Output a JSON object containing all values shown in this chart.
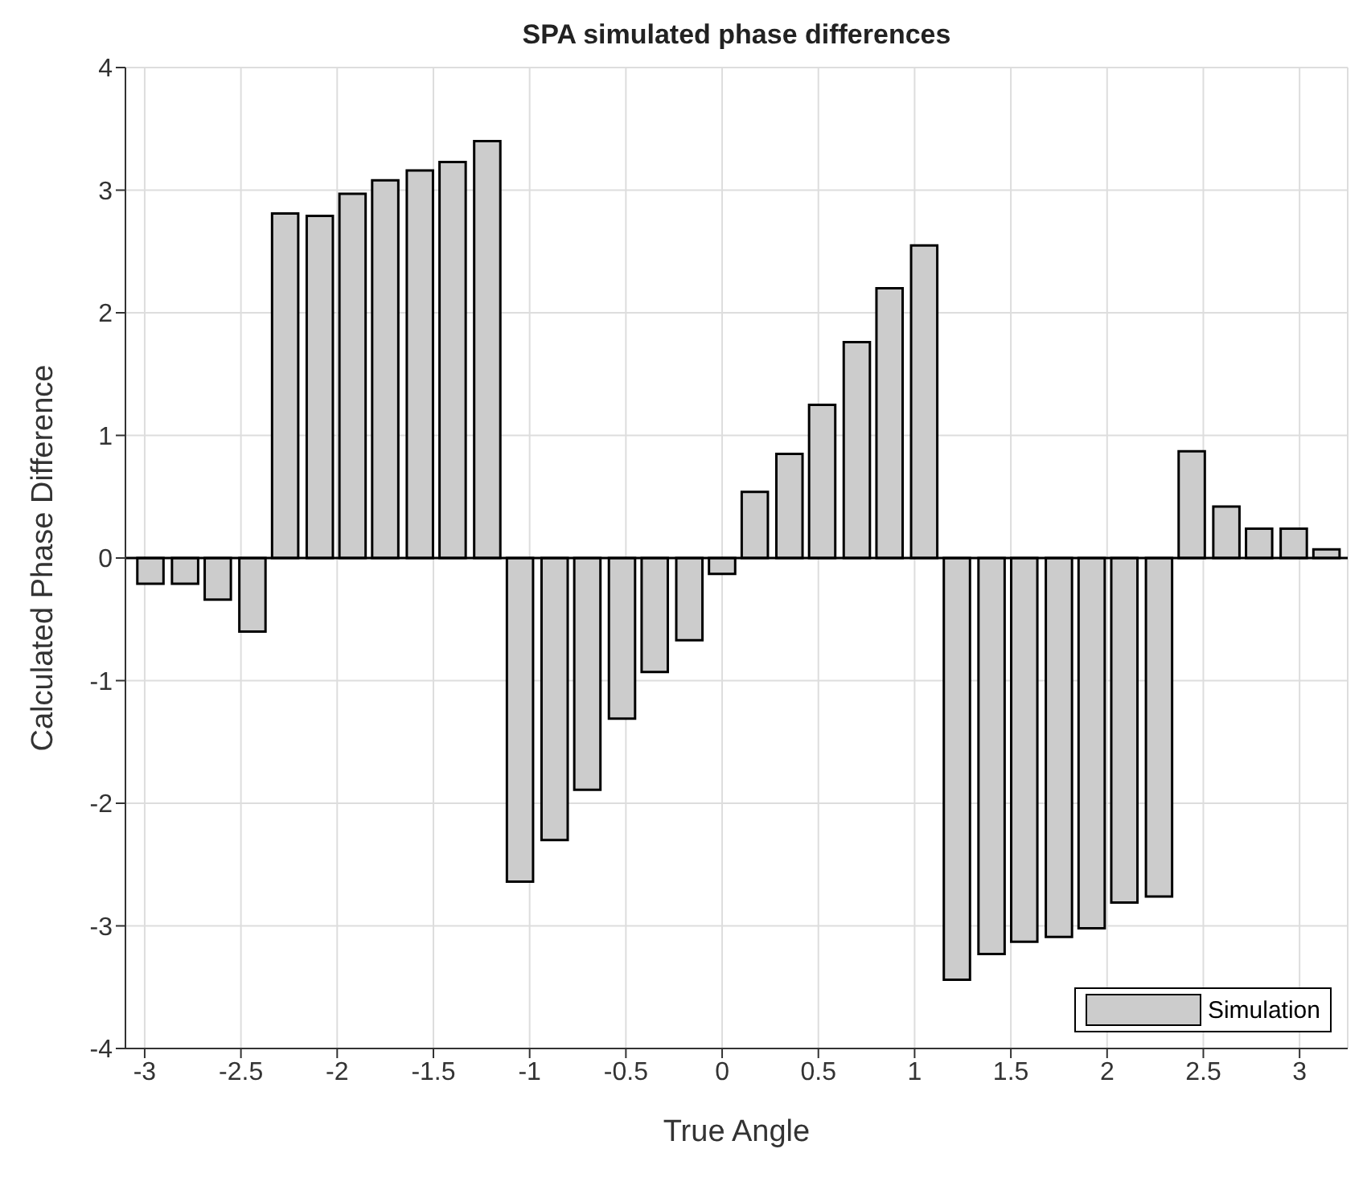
{
  "chart_data": {
    "type": "bar",
    "title": "SPA simulated phase differences",
    "xlabel": "True Angle",
    "ylabel": "Calculated Phase Difference",
    "x": [
      -2.97,
      -2.79,
      -2.62,
      -2.44,
      -2.27,
      -2.09,
      -1.92,
      -1.75,
      -1.57,
      -1.4,
      -1.22,
      -1.05,
      -0.87,
      -0.7,
      -0.52,
      -0.35,
      -0.17,
      0,
      0.17,
      0.35,
      0.52,
      0.7,
      0.87,
      1.05,
      1.22,
      1.4,
      1.57,
      1.75,
      1.92,
      2.09,
      2.27,
      2.44,
      2.62,
      2.79,
      2.97,
      3.14
    ],
    "series": [
      {
        "name": "Simulation",
        "color": "#cccccc",
        "values": [
          -0.21,
          -0.21,
          -0.34,
          -0.6,
          2.81,
          2.79,
          2.97,
          3.08,
          3.16,
          3.23,
          3.4,
          -2.64,
          -2.3,
          -1.89,
          -1.31,
          -0.93,
          -0.67,
          -0.13,
          0.54,
          0.85,
          1.25,
          1.76,
          2.2,
          2.55,
          -3.44,
          -3.23,
          -3.13,
          -3.09,
          -3.02,
          -2.81,
          -2.76,
          0.87,
          0.42,
          0.24,
          0.24,
          0.07
        ]
      }
    ],
    "xlim": [
      -3.1,
      3.25
    ],
    "xticks": [
      -3,
      -2.5,
      -2,
      -1.5,
      -1,
      -0.5,
      0,
      0.5,
      1,
      1.5,
      2,
      2.5,
      3
    ],
    "ylim": [
      -4,
      4
    ],
    "yticks": [
      -4,
      -3,
      -2,
      -1,
      0,
      1,
      2,
      3,
      4
    ],
    "grid": true,
    "legend": "bottom right"
  }
}
